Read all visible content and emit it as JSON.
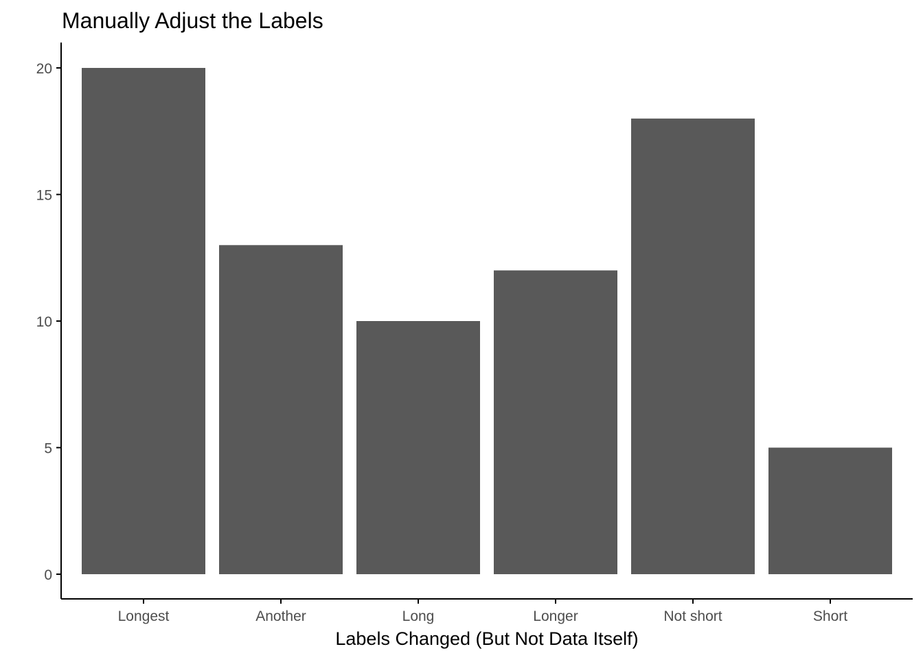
{
  "colors": {
    "bar": "#595959",
    "axis": "#000000",
    "tick_text": "#4d4d4d",
    "background": "#ffffff"
  },
  "chart_data": {
    "type": "bar",
    "title": "Manually Adjust the Labels",
    "xlabel": "Labels Changed (But Not Data Itself)",
    "ylabel": "",
    "categories": [
      "Longest",
      "Another",
      "Long",
      "Longer",
      "Not short",
      "Short"
    ],
    "values": [
      20,
      13,
      10,
      12,
      18,
      5
    ],
    "ylim": [
      0,
      21
    ],
    "yticks": [
      0,
      5,
      10,
      15,
      20
    ],
    "grid": false,
    "legend": "none"
  }
}
